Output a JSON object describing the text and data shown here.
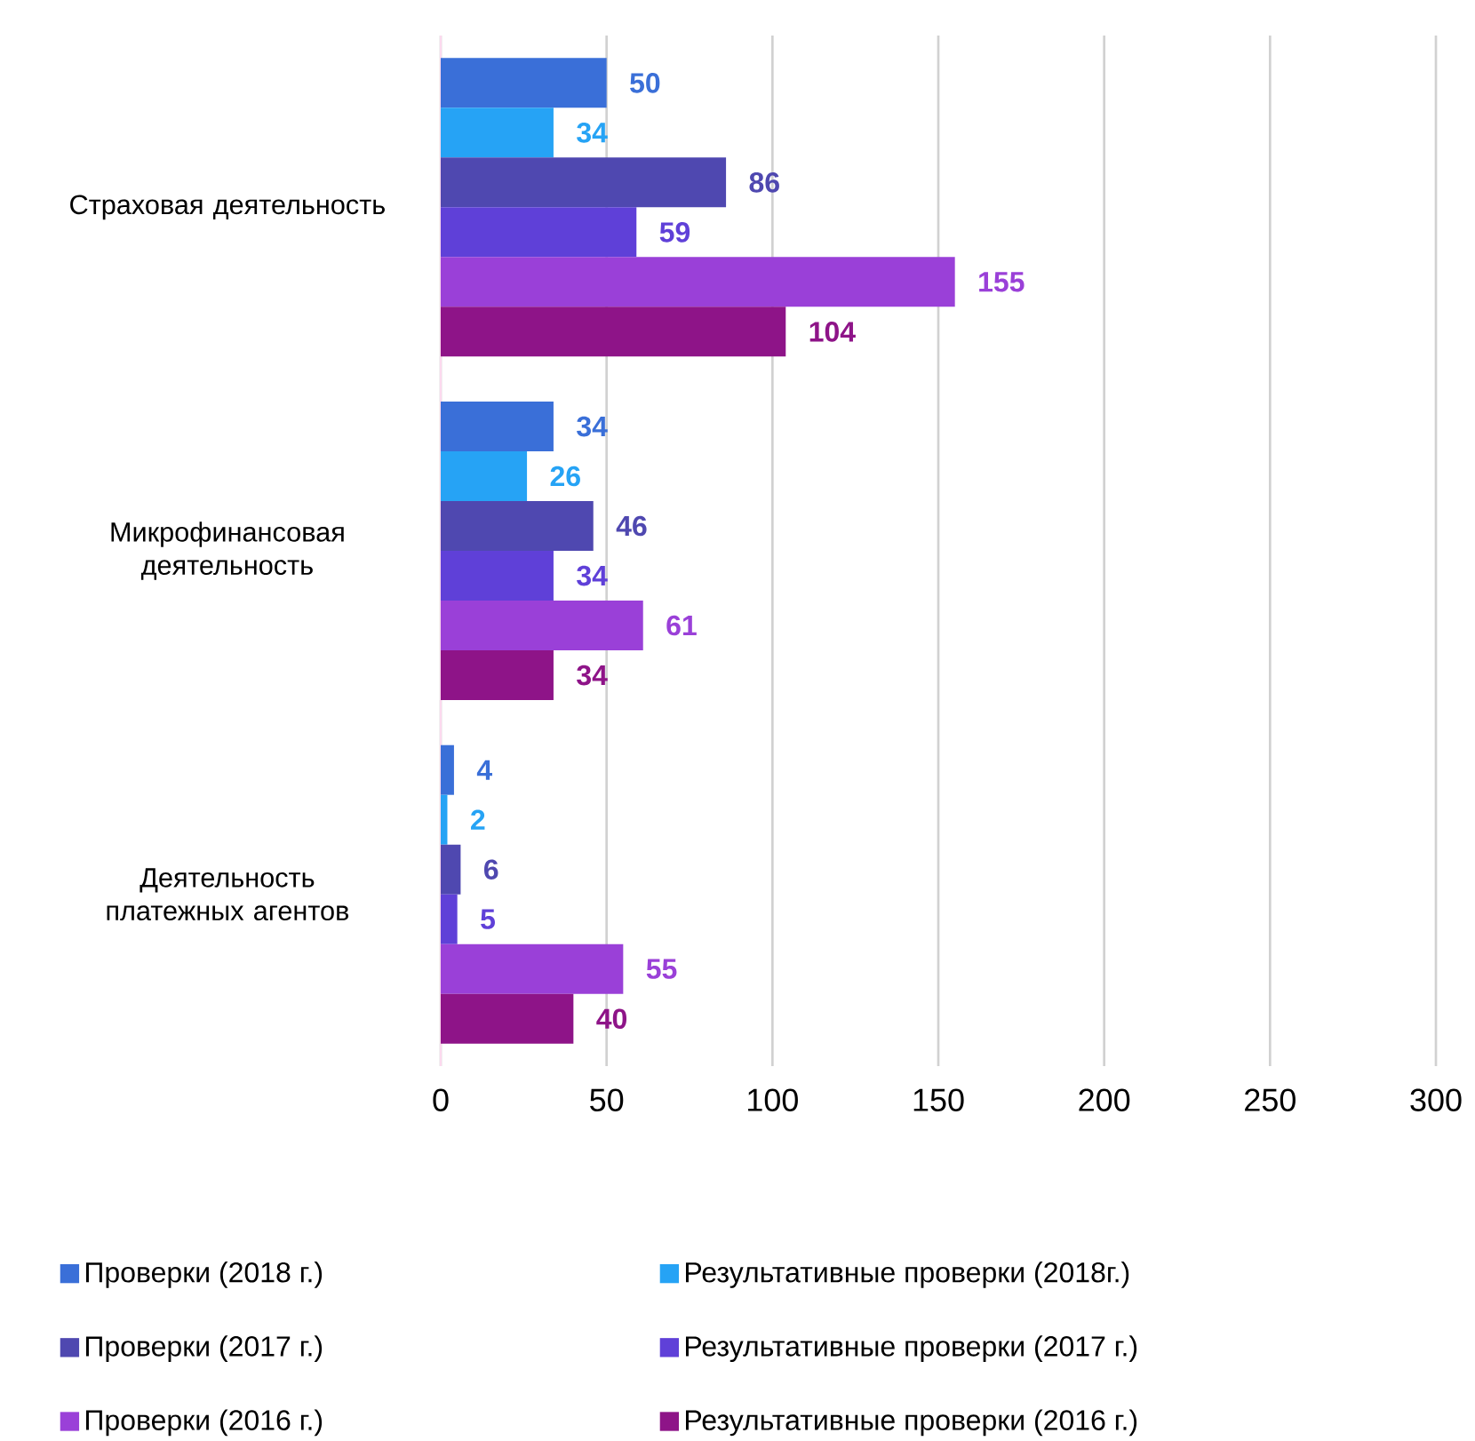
{
  "chart_data": {
    "type": "bar",
    "orientation": "horizontal",
    "categories": [
      "Страховая деятельность",
      "Микрофинансовая деятельность",
      "Деятельность платежных агентов"
    ],
    "series": [
      {
        "name": "Проверки (2018 г.)",
        "color": "#3a6fd8",
        "values": [
          50,
          34,
          4
        ]
      },
      {
        "name": "Результативные проверки (2018г.)",
        "color": "#26a3f5",
        "values": [
          34,
          26,
          2
        ]
      },
      {
        "name": "Проверки (2017 г.)",
        "color": "#4f48b0",
        "values": [
          86,
          46,
          6
        ]
      },
      {
        "name": "Результативные проверки (2017 г.)",
        "color": "#5f40d8",
        "values": [
          59,
          34,
          5
        ]
      },
      {
        "name": "Проверки (2016 г.)",
        "color": "#9a40d8",
        "values": [
          155,
          61,
          55
        ]
      },
      {
        "name": "Результативные проверки (2016 г.)",
        "color": "#8e1488",
        "values": [
          104,
          34,
          40
        ]
      }
    ],
    "xlim": [
      0,
      300
    ],
    "xticks": [
      0,
      50,
      100,
      150,
      200,
      250,
      300
    ],
    "grid": "x",
    "legend": "bottom",
    "data_labels": true
  }
}
